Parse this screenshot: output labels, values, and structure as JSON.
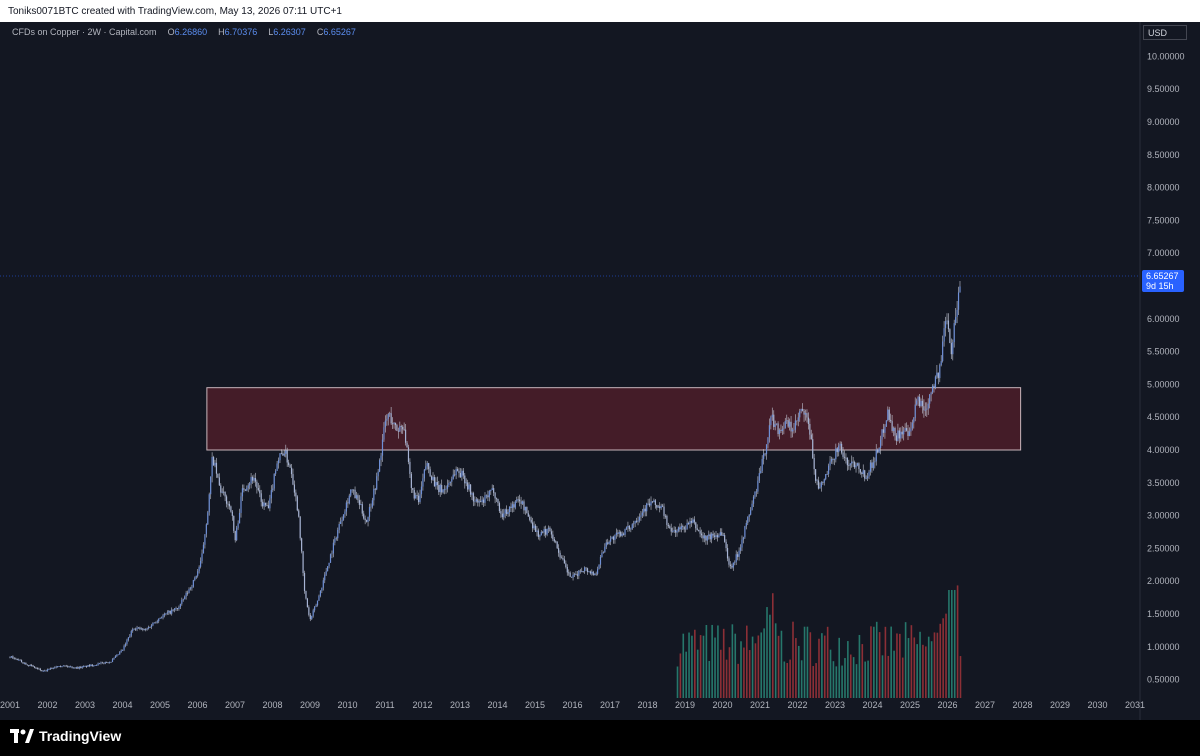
{
  "header": {
    "attribution": "Toniks0071BTC created with TradingView.com, May 13, 2026 07:11 UTC+1"
  },
  "legend": {
    "symbol": "CFDs on Copper · 2W · Capital.com",
    "open_label": "O",
    "open": "6.26860",
    "high_label": "H",
    "high": "6.70376",
    "low_label": "L",
    "low": "6.26307",
    "close_label": "C",
    "close": "6.65267"
  },
  "currency": "USD",
  "price_tag": {
    "price": "6.65267",
    "countdown": "9d 15h"
  },
  "footer": {
    "brand": "TradingView"
  },
  "colors": {
    "background": "#131722",
    "candle": "#6e8fd6",
    "wick": "#c3c8d6",
    "zone_fill": "#5a1f2b",
    "zone_border": "#c9b5bb",
    "volume_up": "#26776b",
    "volume_down": "#8c2f36",
    "price_tag": "#2962ff"
  },
  "chart_data": {
    "type": "candlestick",
    "symbol": "CFDs on Copper",
    "interval": "2W",
    "currency": "USD",
    "x_tick_labels": [
      "2001",
      "2002",
      "2003",
      "2004",
      "2005",
      "2006",
      "2007",
      "2008",
      "2009",
      "2010",
      "2011",
      "2012",
      "2013",
      "2014",
      "2015",
      "2016",
      "2017",
      "2018",
      "2019",
      "2020",
      "2021",
      "2022",
      "2023",
      "2024",
      "2025",
      "2026",
      "2027",
      "2028",
      "2029",
      "2030",
      "2031"
    ],
    "y_tick_labels": [
      "0.50000",
      "1.00000",
      "1.50000",
      "2.00000",
      "2.50000",
      "3.00000",
      "3.50000",
      "4.00000",
      "4.50000",
      "5.00000",
      "5.50000",
      "6.00000",
      "6.50000",
      "7.00000",
      "7.50000",
      "8.00000",
      "8.50000",
      "9.00000",
      "9.50000",
      "10.00000"
    ],
    "ylim": [
      0.25,
      10.0
    ],
    "xlim": [
      2001.0,
      2031.0
    ],
    "price_path": [
      [
        2001.0,
        0.85
      ],
      [
        2001.4,
        0.75
      ],
      [
        2001.9,
        0.62
      ],
      [
        2002.3,
        0.72
      ],
      [
        2002.8,
        0.68
      ],
      [
        2003.2,
        0.72
      ],
      [
        2003.7,
        0.78
      ],
      [
        2004.0,
        0.95
      ],
      [
        2004.3,
        1.3
      ],
      [
        2004.6,
        1.25
      ],
      [
        2005.0,
        1.45
      ],
      [
        2005.5,
        1.6
      ],
      [
        2005.9,
        2.0
      ],
      [
        2006.1,
        2.3
      ],
      [
        2006.3,
        3.2
      ],
      [
        2006.4,
        3.9
      ],
      [
        2006.6,
        3.4
      ],
      [
        2006.9,
        3.1
      ],
      [
        2007.0,
        2.6
      ],
      [
        2007.2,
        3.4
      ],
      [
        2007.5,
        3.6
      ],
      [
        2007.7,
        3.2
      ],
      [
        2007.9,
        3.1
      ],
      [
        2008.1,
        3.8
      ],
      [
        2008.3,
        4.0
      ],
      [
        2008.5,
        3.7
      ],
      [
        2008.7,
        3.0
      ],
      [
        2008.85,
        1.85
      ],
      [
        2009.0,
        1.4
      ],
      [
        2009.2,
        1.7
      ],
      [
        2009.5,
        2.3
      ],
      [
        2009.8,
        2.9
      ],
      [
        2010.1,
        3.4
      ],
      [
        2010.3,
        3.2
      ],
      [
        2010.5,
        2.9
      ],
      [
        2010.8,
        3.6
      ],
      [
        2011.0,
        4.4
      ],
      [
        2011.1,
        4.55
      ],
      [
        2011.3,
        4.3
      ],
      [
        2011.5,
        4.4
      ],
      [
        2011.7,
        3.4
      ],
      [
        2011.9,
        3.2
      ],
      [
        2012.1,
        3.8
      ],
      [
        2012.4,
        3.4
      ],
      [
        2012.6,
        3.4
      ],
      [
        2012.9,
        3.7
      ],
      [
        2013.1,
        3.6
      ],
      [
        2013.4,
        3.2
      ],
      [
        2013.6,
        3.2
      ],
      [
        2013.9,
        3.4
      ],
      [
        2014.1,
        3.0
      ],
      [
        2014.4,
        3.15
      ],
      [
        2014.6,
        3.25
      ],
      [
        2014.9,
        2.9
      ],
      [
        2015.1,
        2.7
      ],
      [
        2015.4,
        2.8
      ],
      [
        2015.7,
        2.35
      ],
      [
        2015.9,
        2.1
      ],
      [
        2016.0,
        2.05
      ],
      [
        2016.3,
        2.2
      ],
      [
        2016.6,
        2.1
      ],
      [
        2016.9,
        2.6
      ],
      [
        2017.2,
        2.7
      ],
      [
        2017.5,
        2.8
      ],
      [
        2017.9,
        3.1
      ],
      [
        2018.1,
        3.2
      ],
      [
        2018.4,
        3.1
      ],
      [
        2018.6,
        2.75
      ],
      [
        2018.9,
        2.8
      ],
      [
        2019.2,
        2.9
      ],
      [
        2019.5,
        2.65
      ],
      [
        2019.8,
        2.7
      ],
      [
        2020.0,
        2.75
      ],
      [
        2020.2,
        2.2
      ],
      [
        2020.4,
        2.4
      ],
      [
        2020.7,
        3.0
      ],
      [
        2020.9,
        3.4
      ],
      [
        2021.1,
        3.9
      ],
      [
        2021.3,
        4.5
      ],
      [
        2021.5,
        4.3
      ],
      [
        2021.7,
        4.4
      ],
      [
        2021.9,
        4.3
      ],
      [
        2022.1,
        4.6
      ],
      [
        2022.3,
        4.4
      ],
      [
        2022.5,
        3.5
      ],
      [
        2022.6,
        3.4
      ],
      [
        2022.9,
        3.8
      ],
      [
        2023.1,
        4.1
      ],
      [
        2023.3,
        3.8
      ],
      [
        2023.6,
        3.8
      ],
      [
        2023.8,
        3.6
      ],
      [
        2024.0,
        3.8
      ],
      [
        2024.2,
        4.1
      ],
      [
        2024.4,
        4.6
      ],
      [
        2024.6,
        4.2
      ],
      [
        2024.8,
        4.3
      ],
      [
        2025.0,
        4.2
      ],
      [
        2025.2,
        4.8
      ],
      [
        2025.4,
        4.6
      ],
      [
        2025.6,
        5.0
      ],
      [
        2025.8,
        5.2
      ],
      [
        2025.9,
        5.8
      ],
      [
        2026.0,
        6.1
      ],
      [
        2026.1,
        5.5
      ],
      [
        2026.25,
        6.2
      ],
      [
        2026.37,
        6.65
      ]
    ],
    "zone": {
      "x_start": 2006.25,
      "x_end": 2027.95,
      "y_low": 4.0,
      "y_high": 4.95
    },
    "last_price": 6.65267,
    "annotations": [
      "Resistance/support zone box 4.00–4.95",
      "Volume histogram from 2018.8 to 2026.4"
    ]
  }
}
